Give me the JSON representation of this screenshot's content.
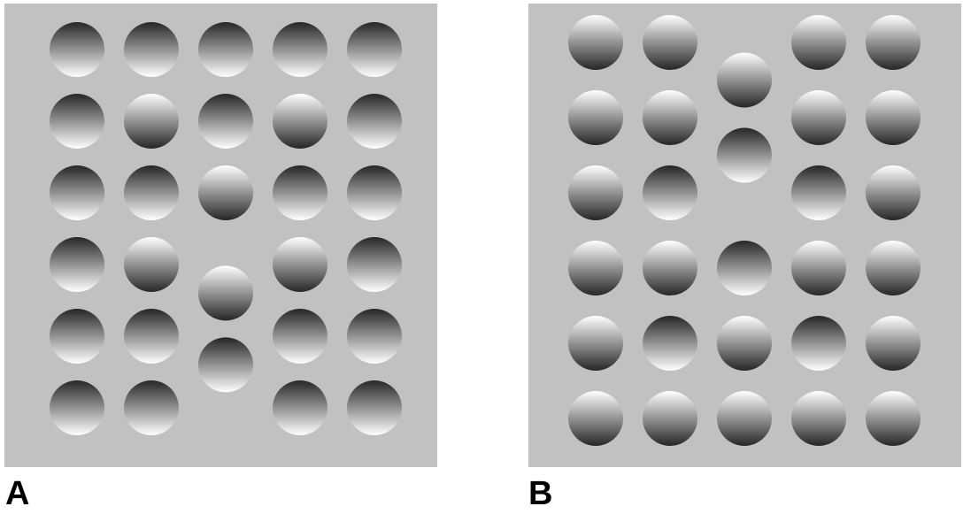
{
  "figure": {
    "background_color": "#c0c1c3",
    "gradient": {
      "light": "#ffffff",
      "dark": "#262626"
    },
    "panels": [
      {
        "id": "A",
        "label": "A",
        "discs": [
          {
            "row": 1,
            "col": 1,
            "shading": "dark-top"
          },
          {
            "row": 1,
            "col": 2,
            "shading": "dark-top"
          },
          {
            "row": 1,
            "col": 3,
            "shading": "dark-top"
          },
          {
            "row": 1,
            "col": 4,
            "shading": "dark-top"
          },
          {
            "row": 1,
            "col": 5,
            "shading": "dark-top"
          },
          {
            "row": 2,
            "col": 1,
            "shading": "dark-top"
          },
          {
            "row": 2,
            "col": 2,
            "shading": "light-top"
          },
          {
            "row": 2,
            "col": 3,
            "shading": "dark-top"
          },
          {
            "row": 2,
            "col": 4,
            "shading": "light-top"
          },
          {
            "row": 2,
            "col": 5,
            "shading": "dark-top"
          },
          {
            "row": 3,
            "col": 1,
            "shading": "dark-top"
          },
          {
            "row": 3,
            "col": 2,
            "shading": "dark-top"
          },
          {
            "row": 3,
            "col": 3,
            "shading": "light-top"
          },
          {
            "row": 3,
            "col": 4,
            "shading": "dark-top"
          },
          {
            "row": 3,
            "col": 5,
            "shading": "dark-top"
          },
          {
            "row": 4,
            "col": 1,
            "shading": "dark-top"
          },
          {
            "row": 4,
            "col": 2,
            "shading": "light-top"
          },
          {
            "row": 4.4,
            "col": 3,
            "shading": "light-top"
          },
          {
            "row": 4,
            "col": 4,
            "shading": "light-top"
          },
          {
            "row": 4,
            "col": 5,
            "shading": "dark-top"
          },
          {
            "row": 5,
            "col": 1,
            "shading": "dark-top"
          },
          {
            "row": 5,
            "col": 2,
            "shading": "dark-top"
          },
          {
            "row": 5.4,
            "col": 3,
            "shading": "dark-top"
          },
          {
            "row": 5,
            "col": 4,
            "shading": "dark-top"
          },
          {
            "row": 5,
            "col": 5,
            "shading": "dark-top"
          },
          {
            "row": 6,
            "col": 1,
            "shading": "dark-top"
          },
          {
            "row": 6,
            "col": 2,
            "shading": "dark-top"
          },
          {
            "row": 6,
            "col": 4,
            "shading": "dark-top"
          },
          {
            "row": 6,
            "col": 5,
            "shading": "dark-top"
          }
        ]
      },
      {
        "id": "B",
        "label": "B",
        "discs": [
          {
            "row": 1,
            "col": 1,
            "shading": "light-top"
          },
          {
            "row": 1,
            "col": 2,
            "shading": "light-top"
          },
          {
            "row": 1.5,
            "col": 3,
            "shading": "light-top"
          },
          {
            "row": 1,
            "col": 4,
            "shading": "light-top"
          },
          {
            "row": 1,
            "col": 5,
            "shading": "light-top"
          },
          {
            "row": 2,
            "col": 1,
            "shading": "light-top"
          },
          {
            "row": 2,
            "col": 2,
            "shading": "light-top"
          },
          {
            "row": 2.5,
            "col": 3,
            "shading": "dark-top"
          },
          {
            "row": 2,
            "col": 4,
            "shading": "light-top"
          },
          {
            "row": 2,
            "col": 5,
            "shading": "light-top"
          },
          {
            "row": 3,
            "col": 1,
            "shading": "light-top"
          },
          {
            "row": 3,
            "col": 2,
            "shading": "dark-top"
          },
          {
            "row": 3,
            "col": 4,
            "shading": "dark-top"
          },
          {
            "row": 3,
            "col": 5,
            "shading": "light-top"
          },
          {
            "row": 4,
            "col": 1,
            "shading": "light-top"
          },
          {
            "row": 4,
            "col": 2,
            "shading": "light-top"
          },
          {
            "row": 4,
            "col": 3,
            "shading": "dark-top"
          },
          {
            "row": 4,
            "col": 4,
            "shading": "light-top"
          },
          {
            "row": 4,
            "col": 5,
            "shading": "light-top"
          },
          {
            "row": 5,
            "col": 1,
            "shading": "light-top"
          },
          {
            "row": 5,
            "col": 2,
            "shading": "dark-top"
          },
          {
            "row": 5,
            "col": 3,
            "shading": "light-top"
          },
          {
            "row": 5,
            "col": 4,
            "shading": "dark-top"
          },
          {
            "row": 5,
            "col": 5,
            "shading": "light-top"
          },
          {
            "row": 6,
            "col": 1,
            "shading": "light-top"
          },
          {
            "row": 6,
            "col": 2,
            "shading": "light-top"
          },
          {
            "row": 6,
            "col": 3,
            "shading": "light-top"
          },
          {
            "row": 6,
            "col": 4,
            "shading": "light-top"
          },
          {
            "row": 6,
            "col": 5,
            "shading": "light-top"
          }
        ]
      }
    ]
  }
}
